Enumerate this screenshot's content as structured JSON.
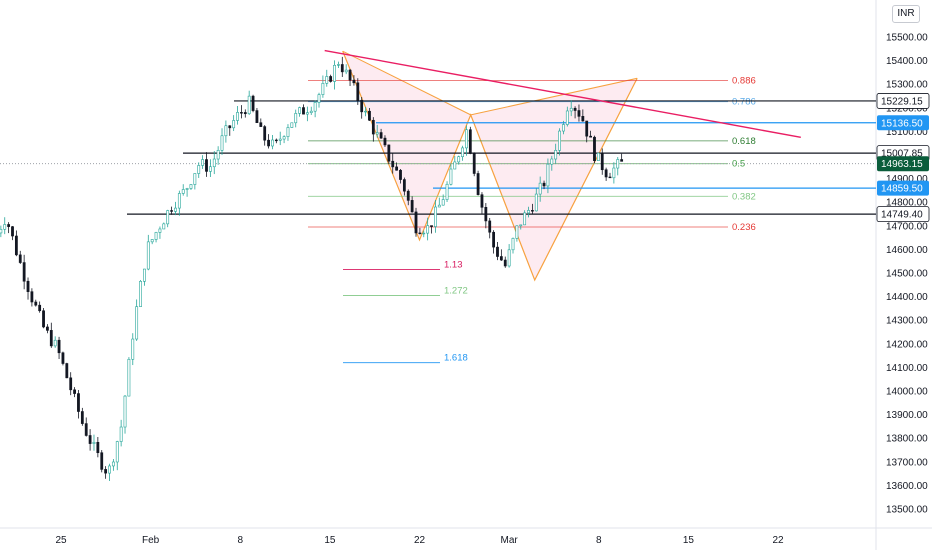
{
  "currency": "INR",
  "chart_data": {
    "type": "candlestick",
    "y_axis": {
      "range": [
        13420,
        15580
      ],
      "ticks": [
        13500,
        13600,
        13700,
        13800,
        13900,
        14000,
        14100,
        14200,
        14300,
        14400,
        14500,
        14600,
        14700,
        14800,
        14900,
        15000,
        15100,
        15200,
        15300,
        15400,
        15500
      ],
      "tick_labels": [
        "13500.00",
        "13600.00",
        "13700.00",
        "13800.00",
        "13900.00",
        "14000.00",
        "14100.00",
        "14200.00",
        "14300.00",
        "14400.00",
        "14500.00",
        "14600.00",
        "14700.00",
        "14800.00",
        "14900.00",
        "15000.00",
        "15100.00",
        "15200.00",
        "15300.00",
        "15400.00",
        "15500.00"
      ]
    },
    "x_axis": {
      "range": [
        "2021-01-20",
        "2021-03-25"
      ],
      "ticks": [
        {
          "date": "2021-01-25",
          "label": "25"
        },
        {
          "date": "2021-02-01",
          "label": "Feb"
        },
        {
          "date": "2021-02-08",
          "label": "8"
        },
        {
          "date": "2021-02-15",
          "label": "15"
        },
        {
          "date": "2021-02-22",
          "label": "22"
        },
        {
          "date": "2021-03-01",
          "label": "Mar"
        },
        {
          "date": "2021-03-08",
          "label": "8"
        },
        {
          "date": "2021-03-15",
          "label": "15"
        },
        {
          "date": "2021-03-22",
          "label": "22"
        }
      ]
    },
    "colors": {
      "up": "#26a69a",
      "down": "#131722",
      "pattern_fill": "#fce4ec",
      "pattern_line": "#f7a13f",
      "trendline": "#e91e63"
    },
    "price_path": [
      [
        "2021-01-20",
        14640
      ],
      [
        "2021-01-21",
        14740
      ],
      [
        "2021-01-22",
        14560
      ],
      [
        "2021-01-23",
        14400
      ],
      [
        "2021-01-24",
        14260
      ],
      [
        "2021-01-25",
        14180
      ],
      [
        "2021-01-26",
        14020
      ],
      [
        "2021-01-27",
        13860
      ],
      [
        "2021-01-28",
        13740
      ],
      [
        "2021-01-29",
        13650
      ],
      [
        "2021-01-30",
        13850
      ],
      [
        "2021-01-31",
        14280
      ],
      [
        "2021-02-01",
        14600
      ],
      [
        "2021-02-02",
        14700
      ],
      [
        "2021-02-03",
        14790
      ],
      [
        "2021-02-04",
        14850
      ],
      [
        "2021-02-05",
        14960
      ],
      [
        "2021-02-06",
        14950
      ],
      [
        "2021-02-07",
        15080
      ],
      [
        "2021-02-08",
        15160
      ],
      [
        "2021-02-09",
        15220
      ],
      [
        "2021-02-10",
        15080
      ],
      [
        "2021-02-11",
        15030
      ],
      [
        "2021-02-12",
        15130
      ],
      [
        "2021-02-13",
        15180
      ],
      [
        "2021-02-14",
        15220
      ],
      [
        "2021-02-15",
        15300
      ],
      [
        "2021-02-16",
        15400
      ],
      [
        "2021-02-17",
        15300
      ],
      [
        "2021-02-18",
        15180
      ],
      [
        "2021-02-19",
        15080
      ],
      [
        "2021-02-20",
        14980
      ],
      [
        "2021-02-21",
        14880
      ],
      [
        "2021-02-22",
        14700
      ],
      [
        "2021-02-23",
        14690
      ],
      [
        "2021-02-24",
        14800
      ],
      [
        "2021-02-25",
        14950
      ],
      [
        "2021-02-26",
        15110
      ],
      [
        "2021-02-27",
        14820
      ],
      [
        "2021-02-28",
        14620
      ],
      [
        "2021-03-01",
        14530
      ],
      [
        "2021-03-02",
        14700
      ],
      [
        "2021-03-03",
        14780
      ],
      [
        "2021-03-04",
        14880
      ],
      [
        "2021-03-05",
        15050
      ],
      [
        "2021-03-06",
        15240
      ],
      [
        "2021-03-07",
        15160
      ],
      [
        "2021-03-08",
        15000
      ],
      [
        "2021-03-09",
        14920
      ],
      [
        "2021-03-10",
        14963.15
      ]
    ],
    "horizontal_levels": [
      {
        "price": 15229.15,
        "label": "15229.15",
        "color": "#131722"
      },
      {
        "price": 15136.5,
        "label": "15136.50",
        "color": "#2196f3"
      },
      {
        "price": 15007.85,
        "label": "15007.85",
        "color": "#131722"
      },
      {
        "price": 14963.15,
        "label": "14963.15",
        "color": "#0b5d3b",
        "current": true
      },
      {
        "price": 14859.5,
        "label": "14859.50",
        "color": "#2196f3"
      },
      {
        "price": 14749.4,
        "label": "14749.40",
        "color": "#131722"
      }
    ],
    "fib_retracement": [
      {
        "ratio": "0.886",
        "price": 15315,
        "color": "#e53935"
      },
      {
        "ratio": "0.786",
        "price": 15226,
        "color": "#5aa9e6"
      },
      {
        "ratio": "0.618",
        "price": 15060,
        "color": "#2e7d32"
      },
      {
        "ratio": "0.5",
        "price": 14963,
        "color": "#43a047"
      },
      {
        "ratio": "0.382",
        "price": 14825,
        "color": "#81c784"
      },
      {
        "ratio": "0.236",
        "price": 14695,
        "color": "#e53935"
      }
    ],
    "fib_extension": [
      {
        "ratio": "1.13",
        "price": 14515,
        "color": "#d81b60"
      },
      {
        "ratio": "1.272",
        "price": 14405,
        "color": "#81c784"
      },
      {
        "ratio": "1.618",
        "price": 14120,
        "color": "#2196f3"
      }
    ],
    "harmonic_pattern": {
      "points": [
        [
          "2021-02-16",
          15440
        ],
        [
          "2021-02-22",
          14640
        ],
        [
          "2021-02-26",
          15170
        ],
        [
          "2021-03-03",
          14470
        ],
        [
          "2021-03-11",
          15325
        ]
      ]
    },
    "trendline": {
      "start": [
        "2021-02-16",
        15430
      ],
      "end": [
        "2021-03-23",
        15075
      ]
    }
  }
}
